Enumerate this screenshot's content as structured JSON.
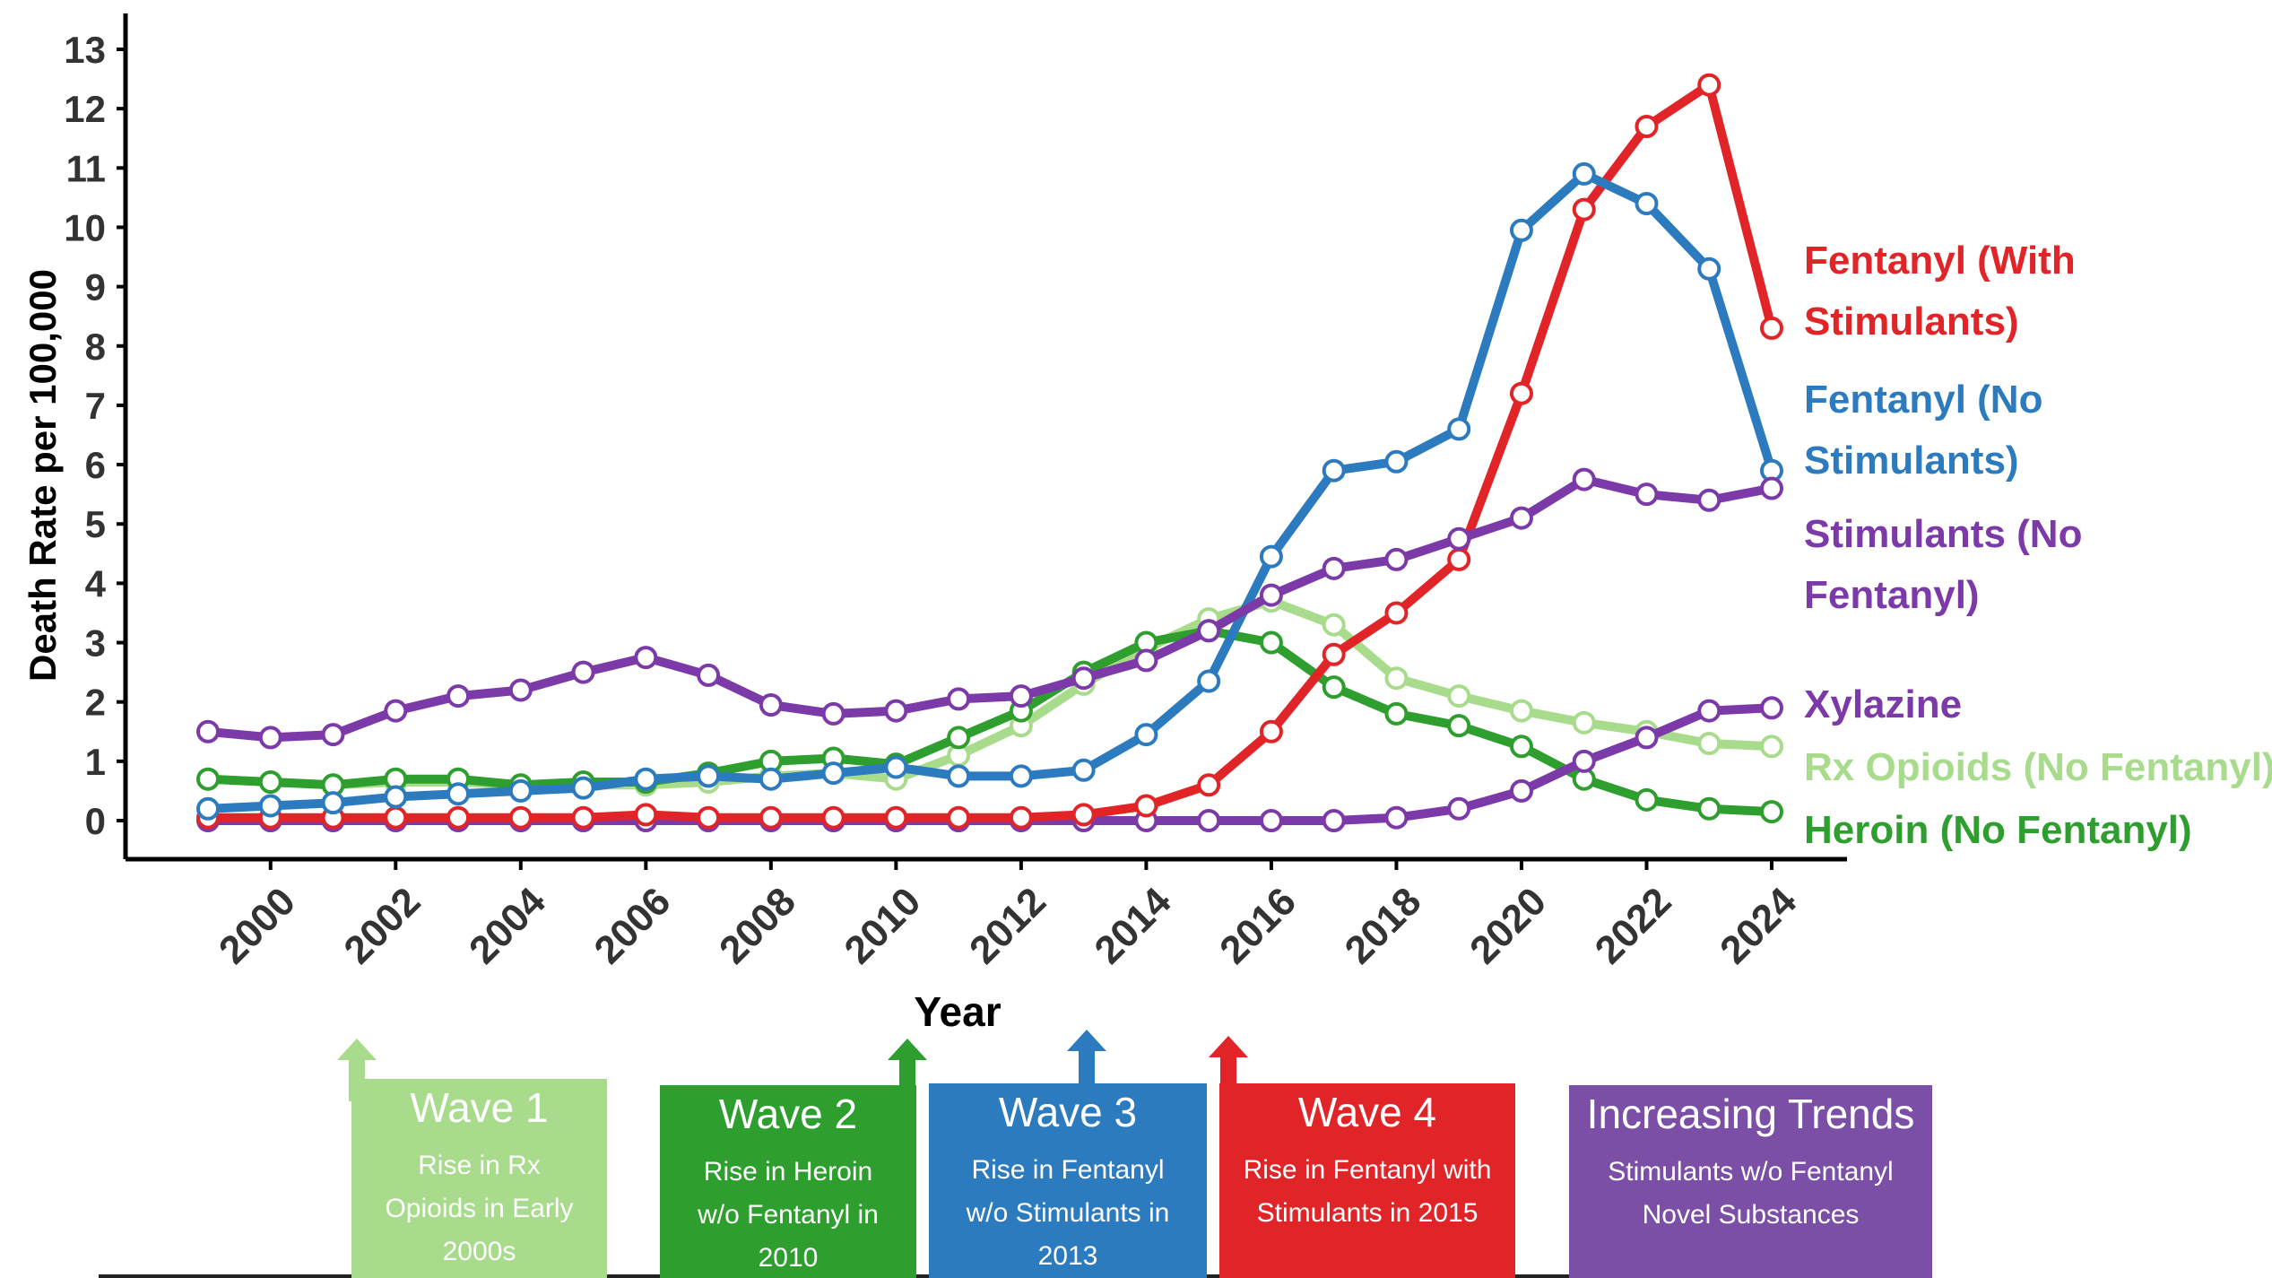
{
  "chart_data": {
    "type": "line",
    "title": "",
    "xlabel": "Year",
    "ylabel": "Death Rate per 100,000",
    "x": [
      1999,
      2000,
      2001,
      2002,
      2003,
      2004,
      2005,
      2006,
      2007,
      2008,
      2009,
      2010,
      2011,
      2012,
      2013,
      2014,
      2015,
      2016,
      2017,
      2018,
      2019,
      2020,
      2021,
      2022,
      2023,
      2024
    ],
    "xticks": [
      "2000",
      "2002",
      "2004",
      "2006",
      "2008",
      "2010",
      "2012",
      "2014",
      "2016",
      "2018",
      "2020",
      "2022",
      "2024"
    ],
    "yticks": [
      "0",
      "1",
      "2",
      "3",
      "4",
      "5",
      "6",
      "7",
      "8",
      "9",
      "10",
      "11",
      "12",
      "13"
    ],
    "ylim": [
      0,
      13
    ],
    "grid": false,
    "legend": "direct labels at right end of lines",
    "series": [
      {
        "name": "Rx Opioids (No Fentanyl)",
        "label_lines": [
          "Rx Opioids (No Fentanyl)"
        ],
        "color": "#a8dc8c",
        "values": [
          0.7,
          0.65,
          0.6,
          0.65,
          0.65,
          0.6,
          0.6,
          0.6,
          0.65,
          0.75,
          0.8,
          0.7,
          1.1,
          1.6,
          2.3,
          2.9,
          3.4,
          3.7,
          3.3,
          2.4,
          2.1,
          1.85,
          1.65,
          1.5,
          1.3,
          1.25
        ]
      },
      {
        "name": "Heroin (No Fentanyl)",
        "label_lines": [
          "Heroin (No Fentanyl)"
        ],
        "color": "#2e9e2e",
        "values": [
          0.7,
          0.65,
          0.6,
          0.7,
          0.7,
          0.6,
          0.65,
          0.65,
          0.8,
          1.0,
          1.05,
          0.95,
          1.4,
          1.85,
          2.5,
          3.0,
          3.2,
          3.0,
          2.25,
          1.8,
          1.6,
          1.25,
          0.7,
          0.35,
          0.2,
          0.15
        ]
      },
      {
        "name": "Xylazine",
        "label_lines": [
          "Xylazine"
        ],
        "color": "#7b3aa8",
        "values": [
          0.0,
          0.0,
          0.0,
          0.0,
          0.0,
          0.0,
          0.0,
          0.0,
          0.0,
          0.0,
          0.0,
          0.0,
          0.0,
          0.0,
          0.0,
          0.0,
          0.0,
          0.0,
          0.0,
          0.05,
          0.2,
          0.5,
          1.0,
          1.4,
          1.85,
          1.9
        ]
      },
      {
        "name": "Fentanyl (With Stimulants)",
        "label_lines": [
          "Fentanyl (With",
          "Stimulants)"
        ],
        "color": "#e02427",
        "values": [
          0.05,
          0.05,
          0.05,
          0.05,
          0.05,
          0.05,
          0.05,
          0.1,
          0.05,
          0.05,
          0.05,
          0.05,
          0.05,
          0.05,
          0.1,
          0.25,
          0.6,
          1.5,
          2.8,
          3.5,
          4.4,
          7.2,
          10.3,
          11.7,
          12.4,
          8.3
        ]
      },
      {
        "name": "Fentanyl (No Stimulants)",
        "label_lines": [
          "Fentanyl (No",
          "Stimulants)"
        ],
        "color": "#2d7bbf",
        "values": [
          0.2,
          0.25,
          0.3,
          0.4,
          0.45,
          0.5,
          0.55,
          0.7,
          0.75,
          0.7,
          0.8,
          0.9,
          0.75,
          0.75,
          0.85,
          1.45,
          2.35,
          4.45,
          5.9,
          6.05,
          6.6,
          9.95,
          10.9,
          10.4,
          9.3,
          5.9
        ]
      },
      {
        "name": "Stimulants (No Fentanyl)",
        "label_lines": [
          "Stimulants (No",
          "Fentanyl)"
        ],
        "color": "#7b3aa8",
        "values": [
          1.5,
          1.4,
          1.45,
          1.85,
          2.1,
          2.2,
          2.5,
          2.75,
          2.45,
          1.95,
          1.8,
          1.85,
          2.05,
          2.1,
          2.4,
          2.7,
          3.2,
          3.8,
          4.25,
          4.4,
          4.75,
          5.1,
          5.75,
          5.5,
          5.4,
          5.6
        ]
      }
    ]
  },
  "waves": [
    {
      "title": "Wave 1",
      "lines": [
        "Rise in Rx",
        "Opioids in Early",
        "2000s"
      ],
      "color": "#a8dc8c"
    },
    {
      "title": "Wave 2",
      "lines": [
        "Rise in Heroin",
        "w/o Fentanyl in",
        "2010"
      ],
      "color": "#2e9e2e"
    },
    {
      "title": "Wave 3",
      "lines": [
        "Rise in Fentanyl",
        "w/o Stimulants in",
        "2013"
      ],
      "color": "#2d7bbf"
    },
    {
      "title": "Wave 4",
      "lines": [
        "Rise in Fentanyl with",
        "Stimulants in 2015"
      ],
      "color": "#e02427"
    },
    {
      "title": "Increasing Trends",
      "lines": [
        "Stimulants w/o Fentanyl",
        "Novel Substances"
      ],
      "color": "#7b4fa6"
    }
  ]
}
